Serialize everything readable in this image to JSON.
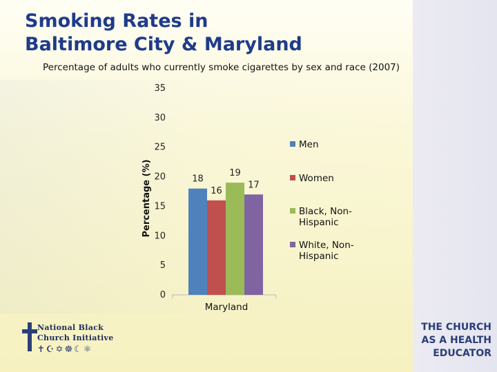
{
  "title_line1": "Smoking Rates in",
  "title_line2": "Baltimore City & Maryland",
  "subtitle": "Percentage of adults who currently smoke cigarettes by sex and race (2007)",
  "colors": {
    "men": "#4f81bd",
    "women": "#c0504d",
    "black": "#9bbb59",
    "white": "#8064a2",
    "title": "#1f3b8a"
  },
  "chart_data": {
    "type": "bar",
    "title": "Percentage of adults who currently smoke cigarettes by sex and race (2007)",
    "xlabel": "",
    "ylabel": "Percentage (%)",
    "ylim": [
      0,
      35
    ],
    "yticks": [
      0,
      5,
      10,
      15,
      20,
      25,
      30,
      35
    ],
    "categories": [
      "Maryland"
    ],
    "grid": false,
    "legend_position": "right",
    "series": [
      {
        "name": "Men",
        "values": [
          18
        ],
        "color": "#4f81bd"
      },
      {
        "name": "Women",
        "values": [
          16
        ],
        "color": "#c0504d"
      },
      {
        "name": "Black, Non-Hispanic",
        "values": [
          19
        ],
        "color": "#9bbb59"
      },
      {
        "name": "White, Non-Hispanic",
        "values": [
          17
        ],
        "color": "#8064a2"
      }
    ],
    "legend_lines": [
      [
        "Men"
      ],
      [
        "Women"
      ],
      [
        "Black, Non-",
        "Hispanic"
      ],
      [
        "White, Non-",
        "Hispanic"
      ]
    ]
  },
  "logos": {
    "nbci_line1": "National Black",
    "nbci_line2": "Church Initiative",
    "nbci_symbols": "✝☪✡☸☾⚛",
    "church_line1": "THE CHURCH",
    "church_line2": "AS A HEALTH",
    "church_line3": "EDUCATOR"
  }
}
